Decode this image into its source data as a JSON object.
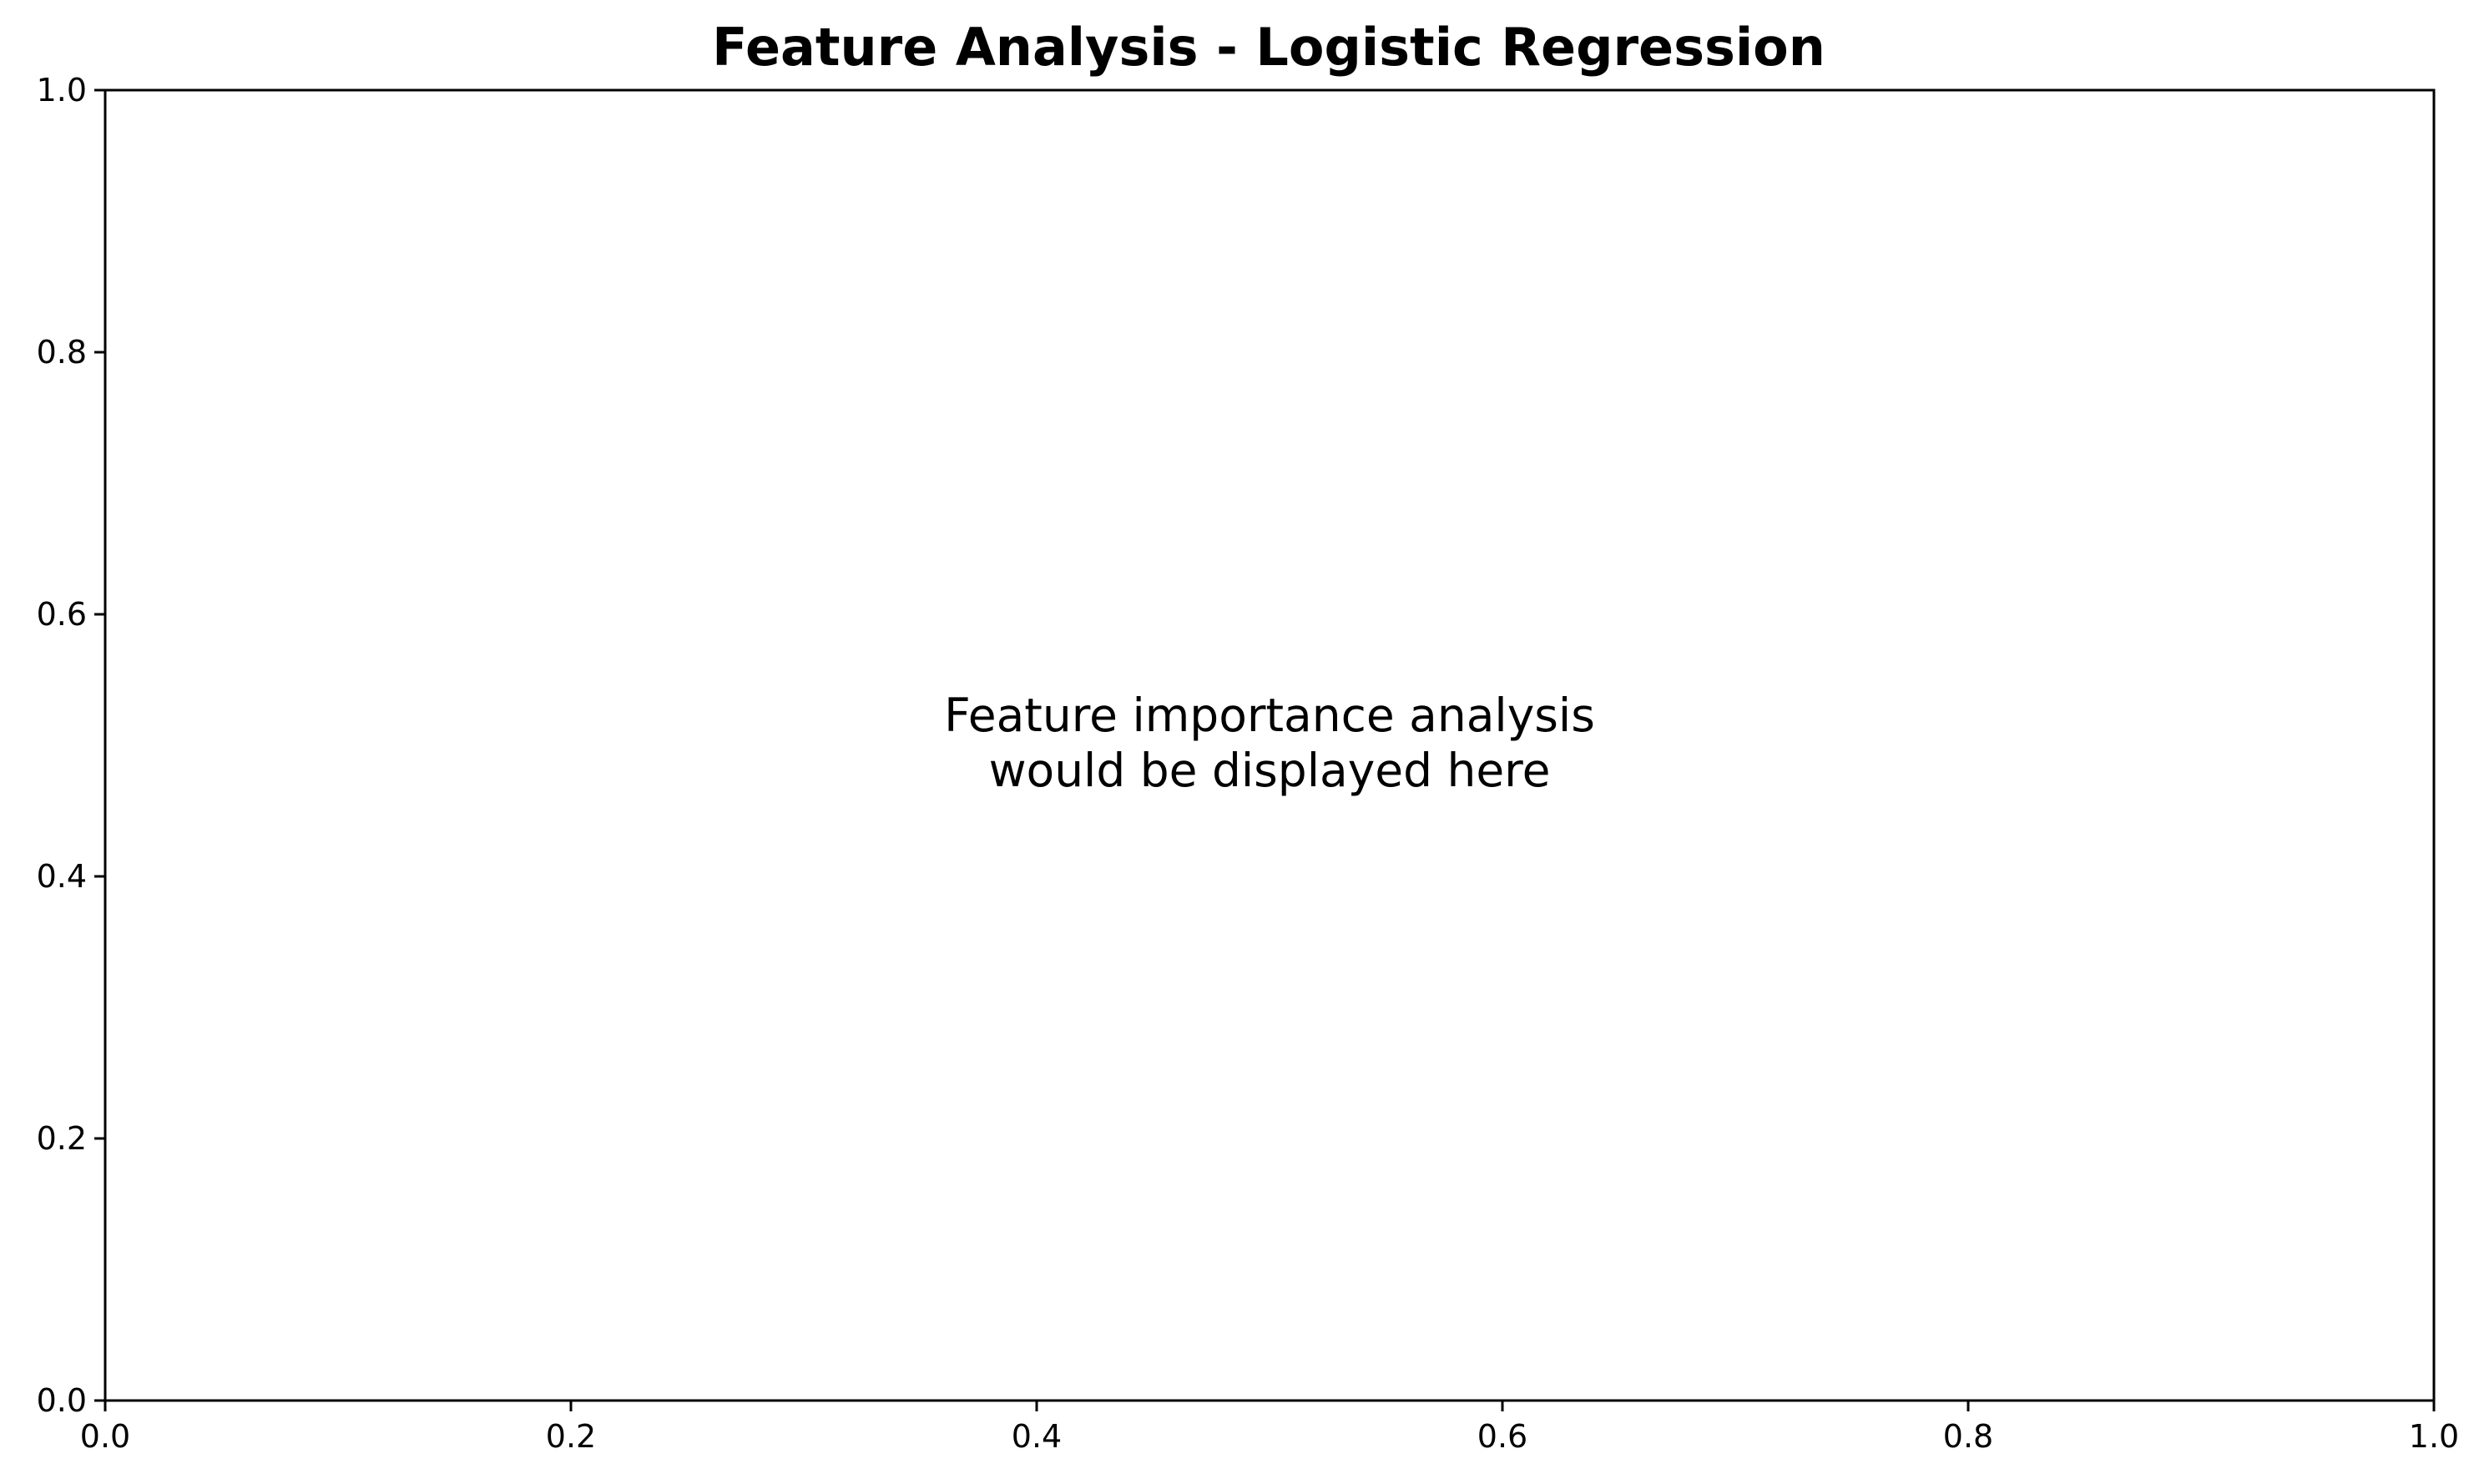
{
  "chart_data": {
    "type": "scatter",
    "title": "Feature Analysis - Logistic Regression",
    "xlabel": "",
    "ylabel": "",
    "xlim": [
      0.0,
      1.0
    ],
    "ylim": [
      0.0,
      1.0
    ],
    "xticks": [
      0.0,
      0.2,
      0.4,
      0.6,
      0.8,
      1.0
    ],
    "yticks": [
      0.0,
      0.2,
      0.4,
      0.6,
      0.8,
      1.0
    ],
    "xtick_labels": [
      "0.0",
      "0.2",
      "0.4",
      "0.6",
      "0.8",
      "1.0"
    ],
    "ytick_labels": [
      "0.0",
      "0.2",
      "0.4",
      "0.6",
      "0.8",
      "1.0"
    ],
    "grid": false,
    "series": [],
    "annotation": {
      "lines": [
        "Feature importance analysis",
        "would be displayed here"
      ],
      "x": 0.5,
      "y": 0.5
    }
  }
}
